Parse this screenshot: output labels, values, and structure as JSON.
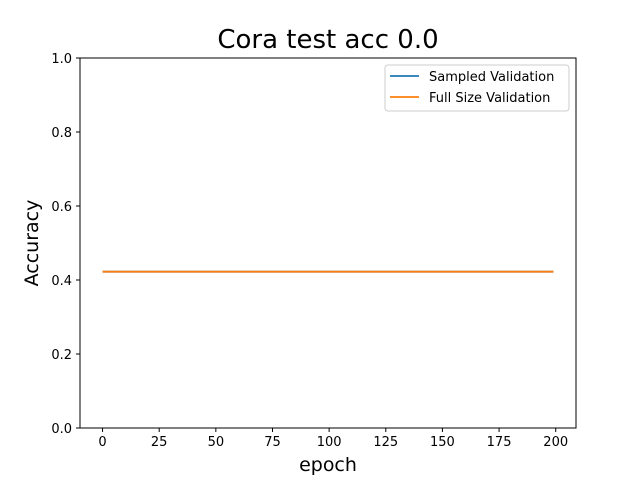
{
  "chart_data": {
    "type": "line",
    "title": "Cora test acc 0.0",
    "xlabel": "epoch",
    "ylabel": "Accuracy",
    "xlim": [
      -9.95,
      208.95
    ],
    "ylim": [
      0.0,
      1.0
    ],
    "xticks": [
      0,
      25,
      50,
      75,
      100,
      125,
      150,
      175,
      200
    ],
    "yticks": [
      0.0,
      0.2,
      0.4,
      0.6,
      0.8,
      1.0
    ],
    "xtick_labels": [
      "0",
      "25",
      "50",
      "75",
      "100",
      "125",
      "150",
      "175",
      "200"
    ],
    "ytick_labels": [
      "0.0",
      "0.2",
      "0.4",
      "0.6",
      "0.8",
      "1.0"
    ],
    "grid": false,
    "legend_position": "upper right",
    "series": [
      {
        "name": "Sampled Validation",
        "color": "#1f77b4",
        "x": [
          0,
          199
        ],
        "y": [
          0.4225,
          0.4225
        ]
      },
      {
        "name": "Full Size Validation",
        "color": "#ff7f0e",
        "x": [
          0,
          199
        ],
        "y": [
          0.4225,
          0.4225
        ]
      }
    ]
  }
}
